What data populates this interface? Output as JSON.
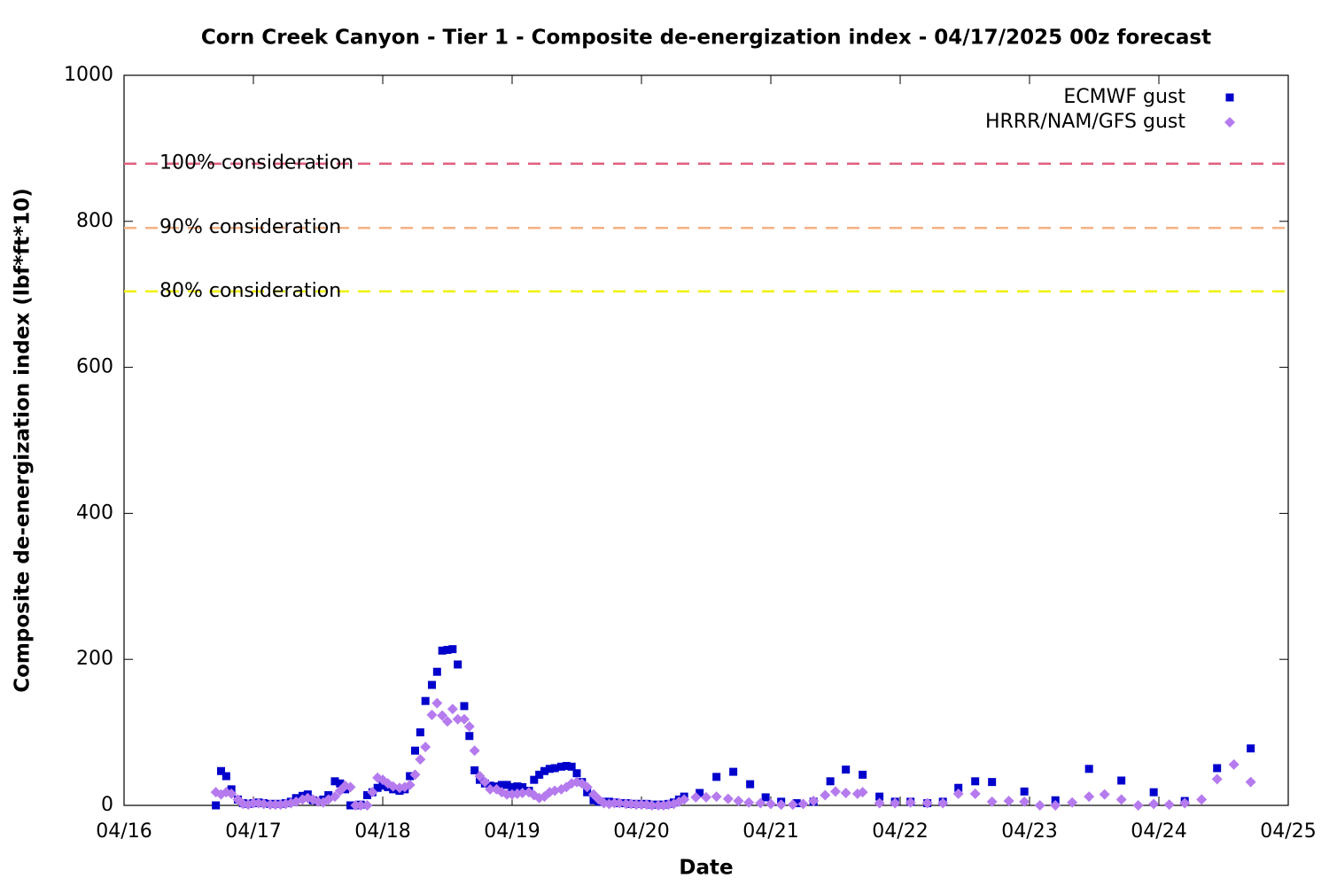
{
  "chart_data": {
    "type": "scatter",
    "title": "Corn Creek Canyon - Tier 1 - Composite de-energization index - 04/17/2025 00z forecast",
    "xlabel": "Date",
    "ylabel": "Composite de-energization index (lbf*ft*10)",
    "xlim": [
      16,
      25
    ],
    "xticks": [
      {
        "value": 16,
        "label": "04/16"
      },
      {
        "value": 17,
        "label": "04/17"
      },
      {
        "value": 18,
        "label": "04/18"
      },
      {
        "value": 19,
        "label": "04/19"
      },
      {
        "value": 20,
        "label": "04/20"
      },
      {
        "value": 21,
        "label": "04/21"
      },
      {
        "value": 22,
        "label": "04/22"
      },
      {
        "value": 23,
        "label": "04/23"
      },
      {
        "value": 24,
        "label": "04/24"
      },
      {
        "value": 25,
        "label": "04/25"
      }
    ],
    "ylim": [
      0,
      1000
    ],
    "yticks": [
      0,
      200,
      400,
      600,
      800,
      1000
    ],
    "grid": false,
    "legend": "top-right",
    "thresholds": [
      {
        "label": "100% consideration",
        "value": 879,
        "color": "#e0607e"
      },
      {
        "label": "90% consideration",
        "value": 791,
        "color": "#f4b183"
      },
      {
        "label": "80% consideration",
        "value": 704,
        "color": "#f0f000"
      }
    ],
    "series": [
      {
        "name": "ECMWF gust",
        "color": "#0000cc",
        "marker": "square",
        "x": [
          16.71,
          16.75,
          16.79,
          16.83,
          16.88,
          16.92,
          16.96,
          17.0,
          17.04,
          17.08,
          17.13,
          17.17,
          17.21,
          17.25,
          17.29,
          17.33,
          17.38,
          17.42,
          17.46,
          17.5,
          17.54,
          17.58,
          17.63,
          17.67,
          17.71,
          17.75,
          17.79,
          17.83,
          17.88,
          17.92,
          17.96,
          18.0,
          18.04,
          18.08,
          18.13,
          18.17,
          18.21,
          18.25,
          18.29,
          18.33,
          18.38,
          18.42,
          18.46,
          18.5,
          18.54,
          18.58,
          18.63,
          18.67,
          18.71,
          18.75,
          18.79,
          18.83,
          18.88,
          18.92,
          18.96,
          19.0,
          19.04,
          19.08,
          19.13,
          19.17,
          19.21,
          19.25,
          19.29,
          19.33,
          19.38,
          19.42,
          19.46,
          19.5,
          19.54,
          19.58,
          19.63,
          19.67,
          19.71,
          19.75,
          19.79,
          19.83,
          19.88,
          19.92,
          19.96,
          20.0,
          20.04,
          20.08,
          20.13,
          20.17,
          20.21,
          20.25,
          20.29,
          20.33,
          20.45,
          20.58,
          20.71,
          20.84,
          20.96,
          21.08,
          21.2,
          21.33,
          21.46,
          21.58,
          21.71,
          21.84,
          21.96,
          22.08,
          22.21,
          22.33,
          22.45,
          22.58,
          22.71,
          22.96,
          23.2,
          23.46,
          23.71,
          23.96,
          24.2,
          24.45,
          24.71
        ],
        "values": [
          0,
          47,
          40,
          22,
          8,
          3,
          2,
          3,
          4,
          3,
          2,
          2,
          2,
          3,
          5,
          10,
          13,
          15,
          7,
          6,
          8,
          14,
          33,
          30,
          22,
          0,
          0,
          1,
          14,
          18,
          24,
          27,
          25,
          22,
          20,
          22,
          40,
          75,
          100,
          143,
          165,
          183,
          212,
          213,
          214,
          193,
          136,
          95,
          48,
          35,
          30,
          27,
          26,
          28,
          28,
          25,
          26,
          25,
          20,
          35,
          42,
          47,
          50,
          51,
          53,
          54,
          53,
          44,
          32,
          18,
          7,
          5,
          5,
          5,
          4,
          3,
          3,
          2,
          2,
          2,
          2,
          1,
          1,
          1,
          2,
          4,
          8,
          12,
          17,
          39,
          46,
          29,
          11,
          5,
          3,
          5,
          33,
          49,
          42,
          12,
          5,
          5,
          3,
          5,
          24,
          33,
          32,
          19,
          7,
          50,
          34,
          18,
          6,
          51,
          78
        ]
      },
      {
        "name": "HRRR/NAM/GFS gust",
        "color": "#b57bee",
        "marker": "diamond",
        "x": [
          16.71,
          16.75,
          16.79,
          16.83,
          16.88,
          16.92,
          16.96,
          17.0,
          17.04,
          17.08,
          17.13,
          17.17,
          17.21,
          17.25,
          17.29,
          17.33,
          17.38,
          17.42,
          17.46,
          17.5,
          17.54,
          17.58,
          17.63,
          17.67,
          17.71,
          17.75,
          17.79,
          17.83,
          17.88,
          17.92,
          17.96,
          18.0,
          18.04,
          18.08,
          18.13,
          18.17,
          18.21,
          18.25,
          18.29,
          18.33,
          18.38,
          18.42,
          18.46,
          18.5,
          18.54,
          18.58,
          18.63,
          18.67,
          18.71,
          18.75,
          18.79,
          18.83,
          18.88,
          18.92,
          18.96,
          19.0,
          19.04,
          19.08,
          19.13,
          19.17,
          19.21,
          19.25,
          19.29,
          19.33,
          19.38,
          19.42,
          19.46,
          19.5,
          19.54,
          19.58,
          19.63,
          19.67,
          19.71,
          19.75,
          19.79,
          19.83,
          19.88,
          19.92,
          19.96,
          20.0,
          20.04,
          20.08,
          20.13,
          20.17,
          20.21,
          20.25,
          20.29,
          20.33,
          20.42,
          20.5,
          20.58,
          20.67,
          20.75,
          20.83,
          20.92,
          21.0,
          21.08,
          21.17,
          21.25,
          21.33,
          21.42,
          21.5,
          21.58,
          21.67,
          21.71,
          21.84,
          21.96,
          22.08,
          22.21,
          22.33,
          22.45,
          22.58,
          22.71,
          22.84,
          22.96,
          23.08,
          23.2,
          23.33,
          23.46,
          23.58,
          23.71,
          23.84,
          23.96,
          24.08,
          24.2,
          24.33,
          24.45,
          24.58,
          24.71
        ],
        "values": [
          18,
          15,
          18,
          16,
          8,
          2,
          1,
          3,
          3,
          2,
          1,
          1,
          1,
          2,
          3,
          5,
          8,
          10,
          8,
          5,
          4,
          8,
          12,
          20,
          27,
          25,
          0,
          0,
          0,
          18,
          38,
          35,
          30,
          26,
          24,
          25,
          28,
          42,
          63,
          80,
          124,
          140,
          123,
          115,
          132,
          118,
          118,
          108,
          75,
          40,
          32,
          22,
          22,
          18,
          15,
          15,
          16,
          17,
          18,
          14,
          10,
          12,
          18,
          20,
          22,
          25,
          30,
          32,
          30,
          25,
          15,
          8,
          3,
          2,
          3,
          3,
          2,
          2,
          1,
          1,
          1,
          0,
          0,
          0,
          1,
          2,
          5,
          8,
          11,
          11,
          12,
          9,
          6,
          4,
          3,
          2,
          1,
          1,
          2,
          6,
          14,
          19,
          17,
          16,
          18,
          3,
          3,
          4,
          3,
          3,
          16,
          16,
          5,
          6,
          5,
          0,
          0,
          4,
          12,
          15,
          8,
          0,
          2,
          1,
          3,
          8,
          36,
          56,
          32
        ]
      }
    ]
  }
}
